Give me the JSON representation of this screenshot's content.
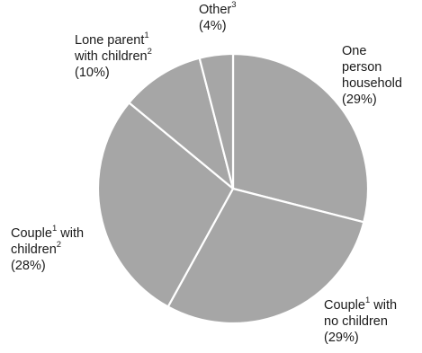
{
  "colors": {
    "slice": "#a6a6a6",
    "separator": "#ffffff",
    "text": "#1a1a1a"
  },
  "chart_data": {
    "type": "pie",
    "title": "",
    "start_angle_deg": 0,
    "direction": "clockwise",
    "slices": [
      {
        "name": "One person household",
        "value": 29,
        "lines": [
          {
            "text": "One",
            "sup": ""
          },
          {
            "text": "person",
            "sup": ""
          },
          {
            "text": "household",
            "sup": ""
          },
          {
            "text": "(29%)",
            "sup": ""
          }
        ]
      },
      {
        "name": "Couple with no children",
        "value": 29,
        "lines": [
          {
            "text": "Couple",
            "sup": "1",
            "after": " with"
          },
          {
            "text": "no children",
            "sup": ""
          },
          {
            "text": "(29%)",
            "sup": ""
          }
        ]
      },
      {
        "name": "Couple with children",
        "value": 28,
        "lines": [
          {
            "text": "Couple",
            "sup": "1",
            "after": " with"
          },
          {
            "text": "children",
            "sup": "2"
          },
          {
            "text": "(28%)",
            "sup": ""
          }
        ]
      },
      {
        "name": "Lone parent with children",
        "value": 10,
        "lines": [
          {
            "text": "Lone parent",
            "sup": "1"
          },
          {
            "text": "with children",
            "sup": "2"
          },
          {
            "text": "(10%)",
            "sup": ""
          }
        ]
      },
      {
        "name": "Other",
        "value": 4,
        "lines": [
          {
            "text": "Other",
            "sup": "3"
          },
          {
            "text": "(4%)",
            "sup": ""
          }
        ]
      }
    ]
  }
}
